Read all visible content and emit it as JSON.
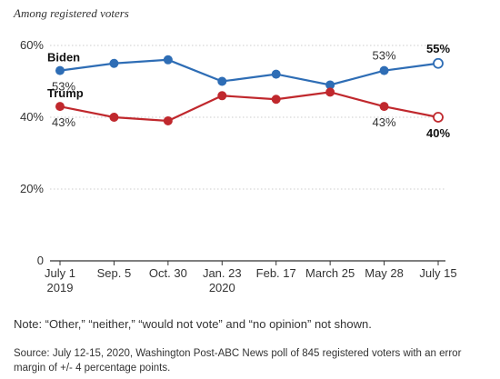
{
  "subtitle": "Among registered voters",
  "note": "Note: “Other,” “neither,” “would not vote” and “no opinion” not shown.",
  "source": "Source: July 12-15, 2020, Washington Post-ABC News poll of 845 registered voters with an error margin of +/- 4 percentage points.",
  "chart_data": {
    "type": "line",
    "categories": [
      "July 1\n2019",
      "Sep. 5",
      "Oct. 30",
      "Jan. 23\n2020",
      "Feb. 17",
      "March 25",
      "May 28",
      "July 15"
    ],
    "ylim": [
      0,
      60
    ],
    "yticks": [
      0,
      20,
      40,
      60
    ],
    "ytick_labels": [
      "0",
      "20%",
      "40%",
      "60%"
    ],
    "grid": true,
    "series": [
      {
        "name": "Biden",
        "color": "#2e6db5",
        "values": [
          53,
          55,
          56,
          50,
          52,
          49,
          53,
          55
        ],
        "labels": [
          {
            "index": 0,
            "text": "53%",
            "bold": false,
            "position": "below"
          },
          {
            "index": 6,
            "text": "53%",
            "bold": false,
            "position": "above"
          },
          {
            "index": 7,
            "text": "55%",
            "bold": true,
            "position": "above"
          }
        ]
      },
      {
        "name": "Trump",
        "color": "#c0282d",
        "values": [
          43,
          40,
          39,
          46,
          45,
          47,
          43,
          40
        ],
        "labels": [
          {
            "index": 0,
            "text": "43%",
            "bold": false,
            "position": "below"
          },
          {
            "index": 6,
            "text": "43%",
            "bold": false,
            "position": "below"
          },
          {
            "index": 7,
            "text": "40%",
            "bold": true,
            "position": "below"
          }
        ]
      }
    ],
    "last_point_style": "open-circle"
  }
}
